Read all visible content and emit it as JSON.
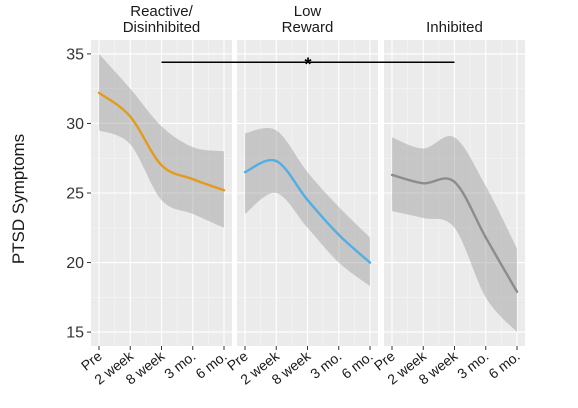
{
  "chart_data": {
    "type": "line",
    "ylabel": "PTSD Symptoms",
    "xlabel": "",
    "ylim": [
      14,
      36
    ],
    "yticks": [
      15,
      20,
      25,
      30,
      35
    ],
    "x": [
      "Pre",
      "2 week",
      "8 week",
      "3 mo.",
      "6 mo."
    ],
    "grid": true,
    "legend": "none",
    "panels": [
      {
        "title_lines": [
          "Reactive/",
          "Disinhibited"
        ],
        "color": "#e39b1e",
        "series": [
          {
            "values": [
              32.2,
              30.5,
              27.0,
              26.0,
              25.2
            ],
            "lower": [
              29.5,
              28.5,
              24.5,
              23.5,
              22.5
            ],
            "upper": [
              35.0,
              32.5,
              29.8,
              28.3,
              28.0
            ]
          }
        ]
      },
      {
        "title_lines": [
          "Low",
          "Reward"
        ],
        "color": "#52aee3",
        "series": [
          {
            "values": [
              26.5,
              27.3,
              24.5,
              22.0,
              20.0
            ],
            "lower": [
              23.5,
              25.0,
              22.5,
              20.0,
              18.3
            ],
            "upper": [
              29.3,
              29.5,
              26.5,
              24.0,
              21.8
            ]
          }
        ]
      },
      {
        "title_lines": [
          "Inhibited"
        ],
        "color": "#8c8c8c",
        "series": [
          {
            "values": [
              26.3,
              25.7,
              25.8,
              21.8,
              17.9
            ],
            "lower": [
              23.7,
              23.2,
              22.5,
              17.5,
              15.0
            ],
            "upper": [
              29.0,
              28.2,
              29.0,
              25.5,
              21.0
            ]
          }
        ]
      }
    ],
    "annotations": [
      {
        "text": "*",
        "from_panel": 0,
        "from_x": "8 week",
        "to_panel": 2,
        "to_x": "8 week",
        "y": 34.4
      }
    ]
  }
}
